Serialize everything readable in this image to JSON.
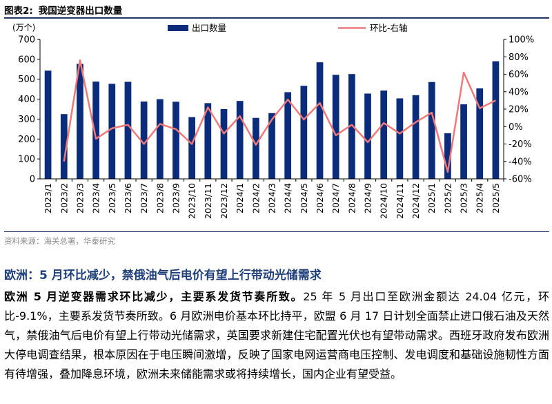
{
  "figure": {
    "label": "图表2:",
    "title": "我国逆变器出口数量"
  },
  "chart_data": {
    "type": "bar+line",
    "left_axis_unit": "(万个)",
    "categories": [
      "2023/1",
      "2023/2",
      "2023/3",
      "2023/4",
      "2023/5",
      "2023/6",
      "2023/7",
      "2023/8",
      "2023/9",
      "2023/10",
      "2023/11",
      "2023/12",
      "2024/1",
      "2024/2",
      "2024/3",
      "2024/4",
      "2024/5",
      "2024/6",
      "2024/7",
      "2024/8",
      "2024/9",
      "2024/10",
      "2024/11",
      "2024/12",
      "2025/1",
      "2025/2",
      "2025/3",
      "2025/4",
      "2025/5"
    ],
    "series": [
      {
        "name": "出口数量",
        "type": "bar",
        "axis": "left",
        "color": "#0b2c7a",
        "values": [
          543,
          325,
          577,
          488,
          477,
          487,
          388,
          400,
          387,
          310,
          380,
          350,
          391,
          306,
          330,
          435,
          467,
          585,
          522,
          526,
          428,
          443,
          404,
          420,
          486,
          229,
          374,
          454,
          590
        ]
      },
      {
        "name": "环比-右轴",
        "type": "line",
        "axis": "right",
        "color": "#f07878",
        "values": [
          null,
          -40,
          76,
          -14,
          -2,
          2,
          -20,
          3,
          -3,
          -20,
          22,
          -8,
          12,
          -21,
          8,
          31,
          8,
          27,
          -10,
          2,
          -18,
          4,
          -8,
          5,
          16,
          -52,
          62,
          21,
          30
        ]
      }
    ],
    "left_axis": {
      "ylim": [
        0,
        700
      ],
      "ticks": [
        0,
        100,
        200,
        300,
        400,
        500,
        600,
        700
      ]
    },
    "right_axis": {
      "ylim": [
        -60,
        100
      ],
      "ticks": [
        "-60%",
        "-40%",
        "-20%",
        "0%",
        "20%",
        "40%",
        "60%",
        "80%",
        "100%"
      ]
    },
    "grid": false,
    "legend_placement": "top"
  },
  "source": "资料来源：海关总署，华泰研究",
  "section_title": "欧洲：5 月环比减少，禁俄油气后电价有望上行带动光储需求",
  "paragraph": {
    "lead": "欧洲 5 月逆变器需求环比减少，主要系发货节奏所致。",
    "text": "25 年 5 月出口至欧洲金额达 24.04 亿元，环比-9.1%，主要系发货节奏所致。6 月欧洲电价基本环比持平，欧盟 6 月 17 日计划全面禁止进口俄石油及天然气，禁俄油气后电价有望上行带动光储需求，英国要求新建住宅配置光伏也有望带动需求。西班牙政府发布欧洲大停电调查结果，根本原因在于电压瞬间激增，反映了国家电网运营商电压控制、发电调度和基础设施韧性方面有待增强，叠加降息环境，欧洲未来储能需求或将持续增长，国内企业有望受益。"
  }
}
